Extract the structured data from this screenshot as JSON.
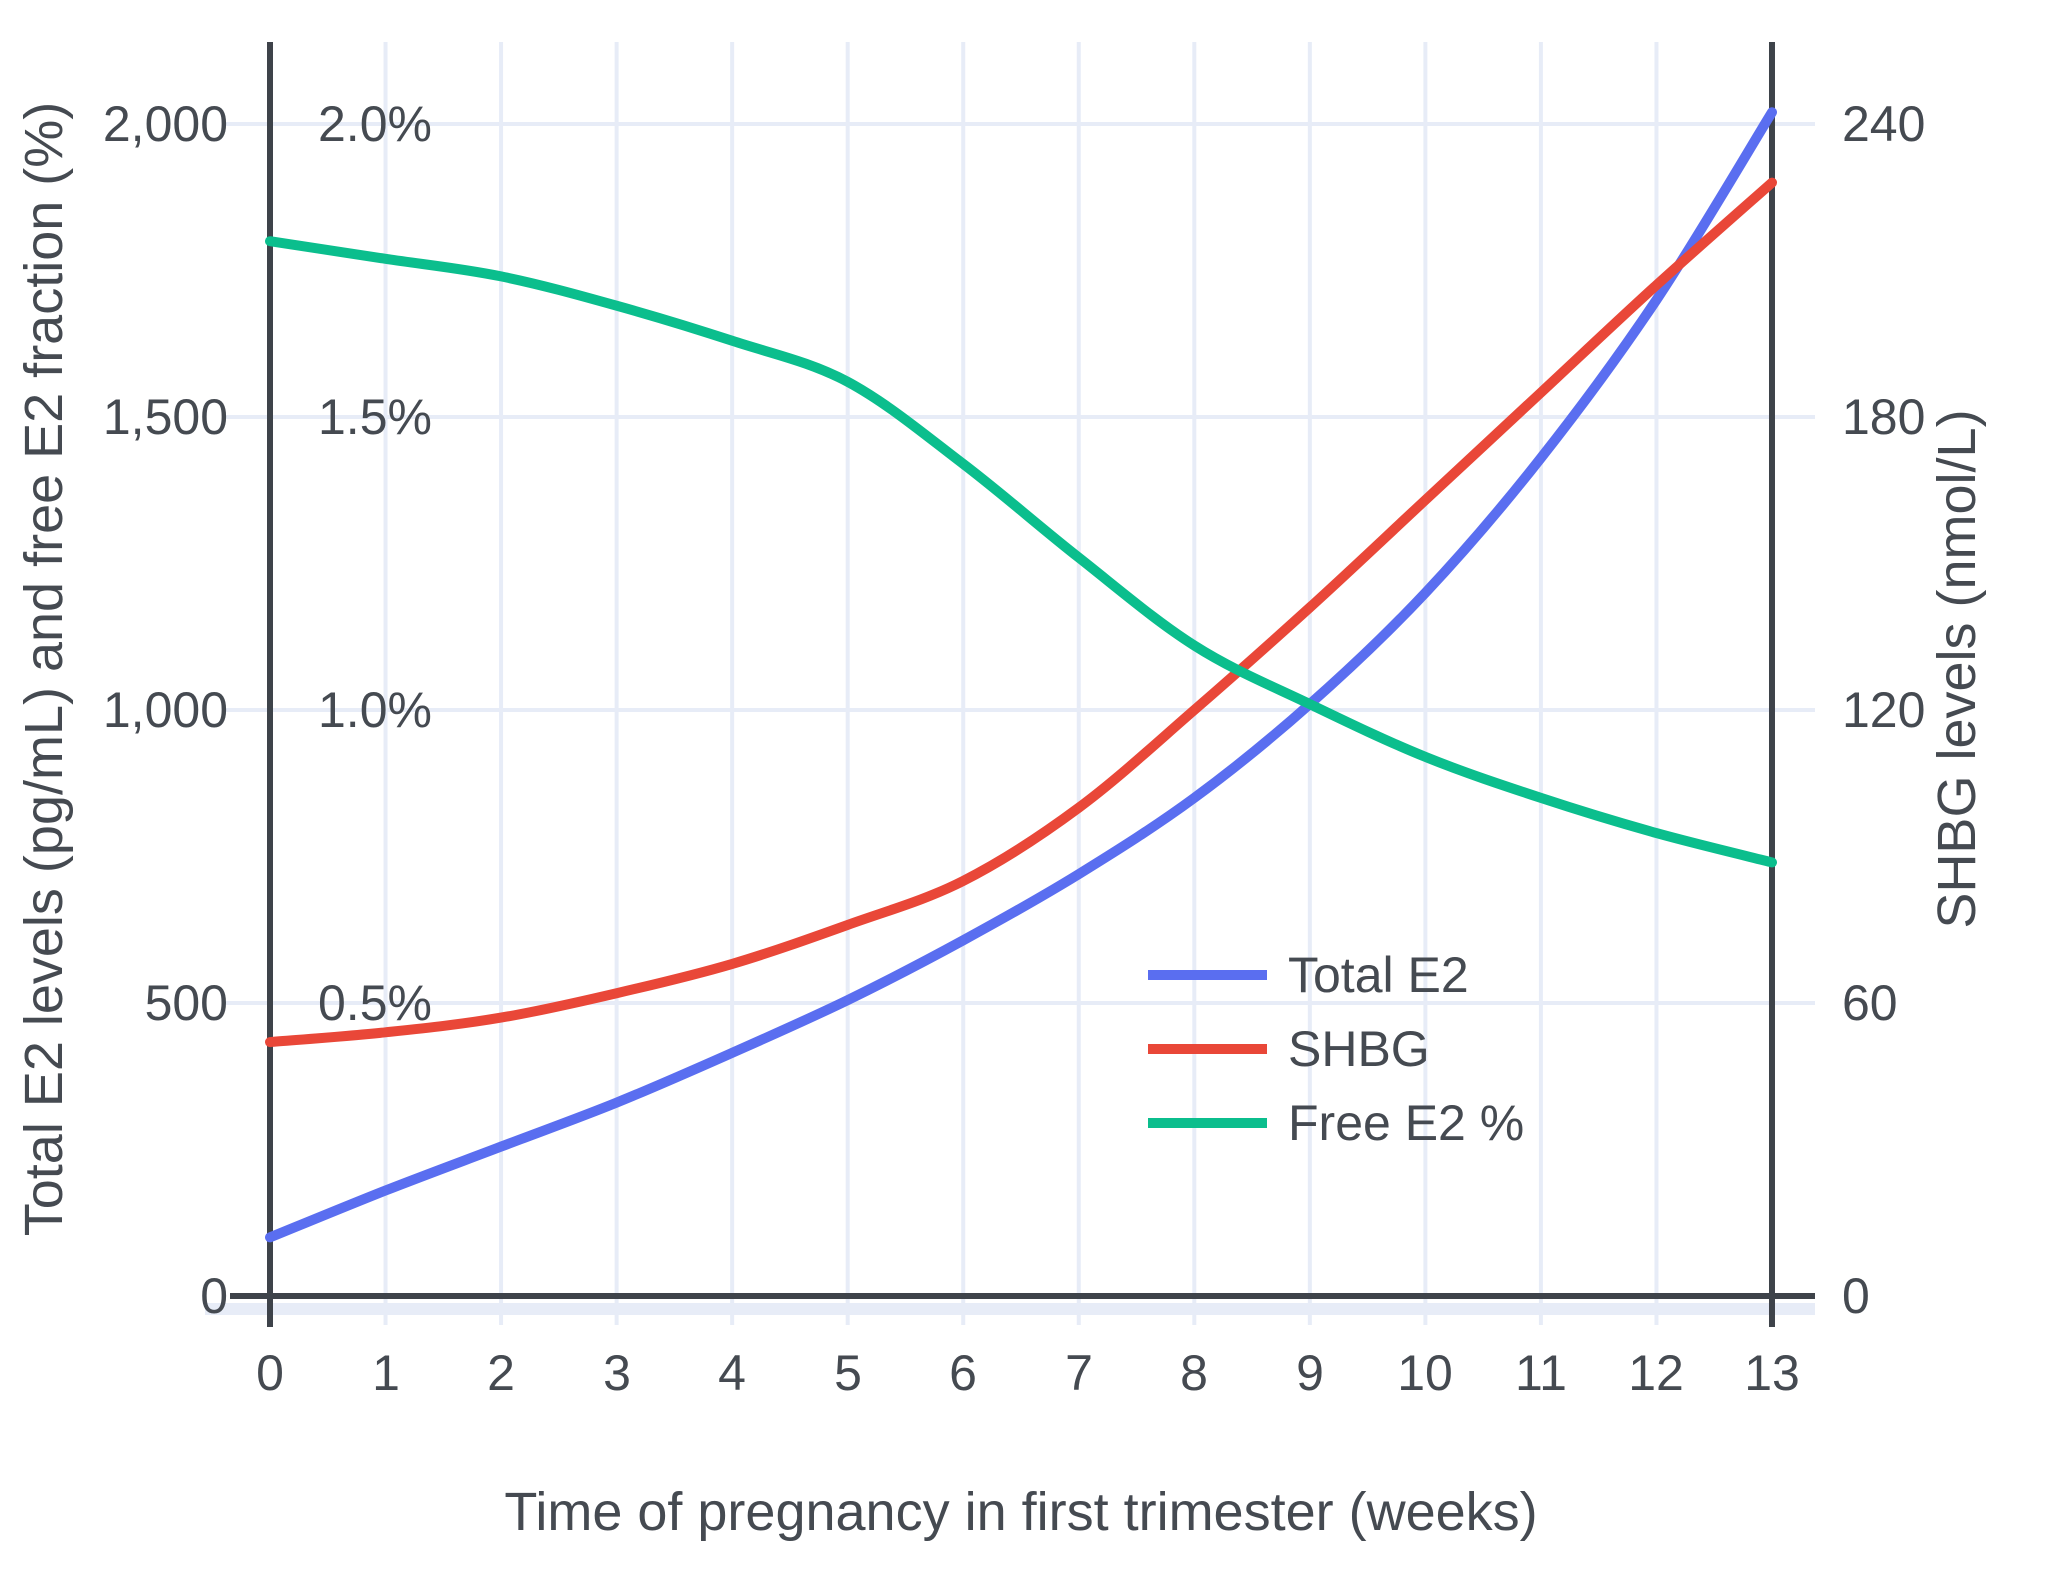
{
  "chart_data": {
    "type": "line",
    "title": "",
    "xlabel": "Time of pregnancy in first trimester (weeks)",
    "ylabel_left": "Total E2 levels (pg/mL) and free E2 fraction (%)",
    "ylabel_right": "SHBG levels (nmol/L)",
    "x": [
      0,
      1,
      2,
      3,
      4,
      5,
      6,
      7,
      8,
      9,
      10,
      11,
      12,
      13
    ],
    "x_ticks": [
      "0",
      "1",
      "2",
      "3",
      "4",
      "5",
      "6",
      "7",
      "8",
      "9",
      "10",
      "11",
      "12",
      "13"
    ],
    "y_ticks_left": [
      "0",
      "500",
      "1,000",
      "1,500",
      "2,000"
    ],
    "y_ticks_percent": [
      "0.5%",
      "1.0%",
      "1.5%",
      "2.0%"
    ],
    "y_ticks_right": [
      "0",
      "60",
      "120",
      "180",
      "240"
    ],
    "ylim_left": [
      0,
      2140
    ],
    "ylim_right": [
      0,
      256.8
    ],
    "grid": true,
    "legend_position": "inside-bottom-right",
    "series": [
      {
        "name": "Total E2",
        "axis": "left",
        "units": "pg/mL",
        "color": "#5a6ef0",
        "values": [
          100,
          180,
          255,
          330,
          415,
          505,
          607,
          720,
          850,
          1010,
          1200,
          1430,
          1700,
          2020
        ]
      },
      {
        "name": "SHBG",
        "axis": "right",
        "units": "nmol/L",
        "color": "#e94738",
        "values": [
          52,
          54,
          57,
          62,
          68,
          76,
          85,
          100,
          120,
          141,
          163,
          185,
          207,
          228
        ]
      },
      {
        "name": "Free E2 %",
        "axis": "left-percent",
        "units": "%",
        "color": "#0bbe8d",
        "values": [
          1.8,
          1.77,
          1.74,
          1.69,
          1.63,
          1.56,
          1.42,
          1.26,
          1.11,
          1.01,
          0.92,
          0.85,
          0.79,
          0.74
        ]
      }
    ]
  },
  "legend": {
    "items": [
      {
        "label": "Total E2",
        "color": "#5a6ef0"
      },
      {
        "label": "SHBG",
        "color": "#e94738"
      },
      {
        "label": "Free E2 %",
        "color": "#0bbe8d"
      }
    ]
  },
  "colors": {
    "background": "#ffffff",
    "grid": "#e7ecf7",
    "axis": "#3e434a",
    "text": "#454a51"
  }
}
